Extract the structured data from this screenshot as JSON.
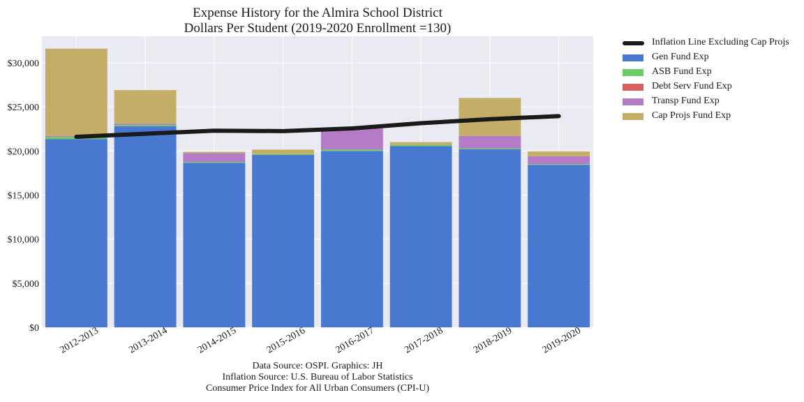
{
  "chart_data": {
    "type": "bar",
    "stacked": true,
    "title": "Expense History for the Almira School District",
    "subtitle": "Dollars Per Student (2019-2020 Enrollment =130)",
    "categories": [
      "2012-2013",
      "2013-2014",
      "2014-2015",
      "2015-2016",
      "2016-2017",
      "2017-2018",
      "2018-2019",
      "2019-2020"
    ],
    "series": [
      {
        "name": "Gen Fund Exp",
        "color": "#4878d0",
        "values": [
          21350,
          22800,
          18650,
          19550,
          20000,
          20550,
          20200,
          18400
        ]
      },
      {
        "name": "ASB Fund Exp",
        "color": "#6acc64",
        "values": [
          250,
          150,
          100,
          100,
          150,
          150,
          100,
          100
        ]
      },
      {
        "name": "Debt Serv Fund Exp",
        "color": "#d65f5f",
        "values": [
          0,
          0,
          0,
          0,
          0,
          0,
          0,
          0
        ]
      },
      {
        "name": "Transp Fund Exp",
        "color": "#b47cc7",
        "values": [
          100,
          150,
          1000,
          0,
          2400,
          0,
          1400,
          900
        ]
      },
      {
        "name": "Cap Projs Fund Exp",
        "color": "#c4ad66",
        "values": [
          9900,
          3800,
          150,
          500,
          50,
          300,
          4300,
          550
        ]
      }
    ],
    "line": {
      "name": "Inflation Line Excluding Cap Projs",
      "color": "#1a1a1a",
      "values": [
        21600,
        21950,
        22300,
        22250,
        22550,
        23150,
        23600,
        23950
      ]
    },
    "yticks": [
      "$0",
      "$5,000",
      "$10,000",
      "$15,000",
      "$20,000",
      "$25,000",
      "$30,000"
    ],
    "ylim": [
      0,
      33000
    ],
    "grid": true,
    "legend_position": "outside-right",
    "xlabel": "",
    "ylabel": ""
  },
  "footer": {
    "line1": "Data Source: OSPI. Graphics: JH",
    "line2": "Inflation Source: U.S. Bureau of Labor Statistics",
    "line3": "Consumer Price Index for All Urban Consumers (CPI-U)"
  }
}
